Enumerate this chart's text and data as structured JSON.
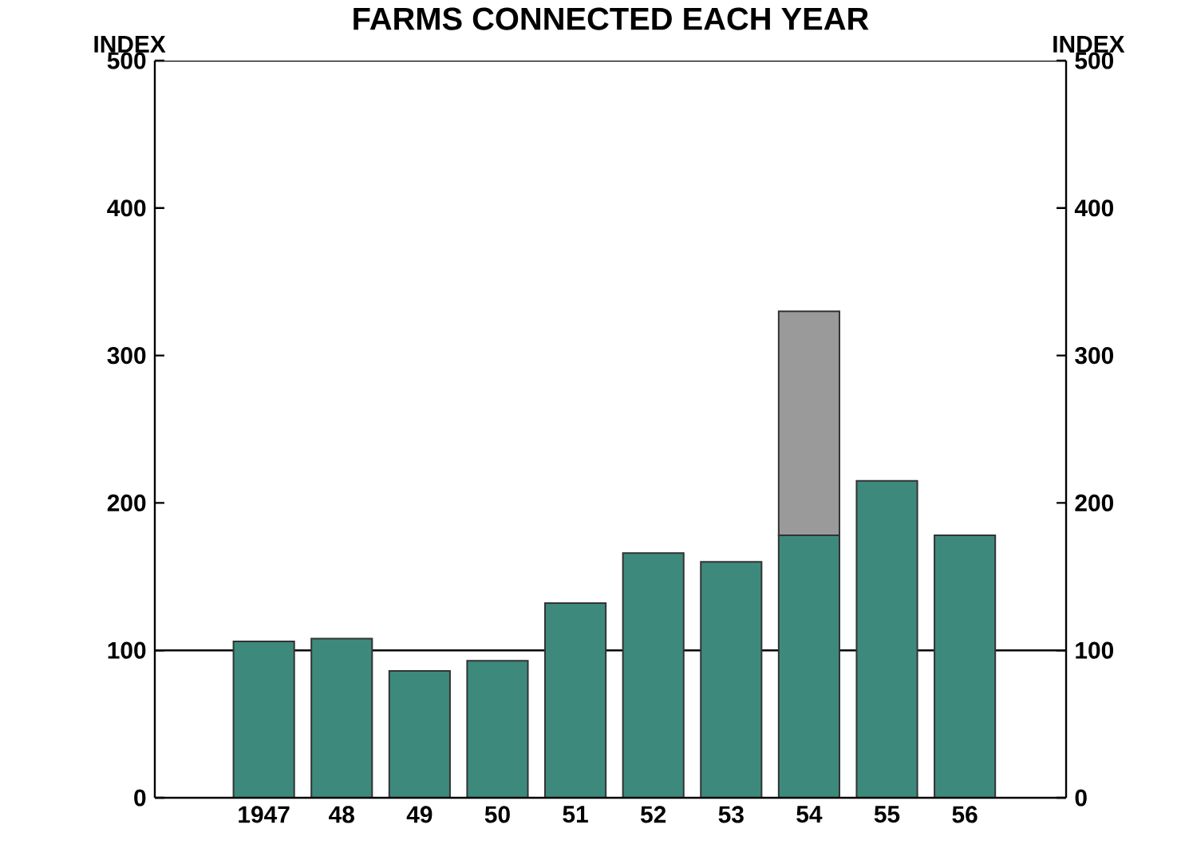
{
  "chart_data": {
    "type": "bar",
    "title": "FARMS CONNECTED EACH YEAR",
    "ylabel": "INDEX",
    "y2label": "INDEX",
    "categories": [
      "1947",
      "48",
      "49",
      "50",
      "51",
      "52",
      "53",
      "54",
      "55",
      "56"
    ],
    "stacked": true,
    "series": [
      {
        "color": "#3d8a7d",
        "values": [
          106,
          108,
          86,
          93,
          132,
          166,
          160,
          178,
          215,
          178
        ]
      },
      {
        "color": "#9a9a9a",
        "values": [
          null,
          null,
          null,
          null,
          null,
          null,
          null,
          152,
          null,
          null
        ]
      }
    ],
    "ylim": [
      0,
      500
    ],
    "yticks": [
      0,
      100,
      200,
      300,
      400,
      500
    ],
    "y2lim": [
      0,
      500
    ],
    "y2ticks": [
      0,
      100,
      200,
      300,
      400,
      500
    ],
    "ref_lines": [
      {
        "axis": "y",
        "value": 100
      }
    ]
  }
}
